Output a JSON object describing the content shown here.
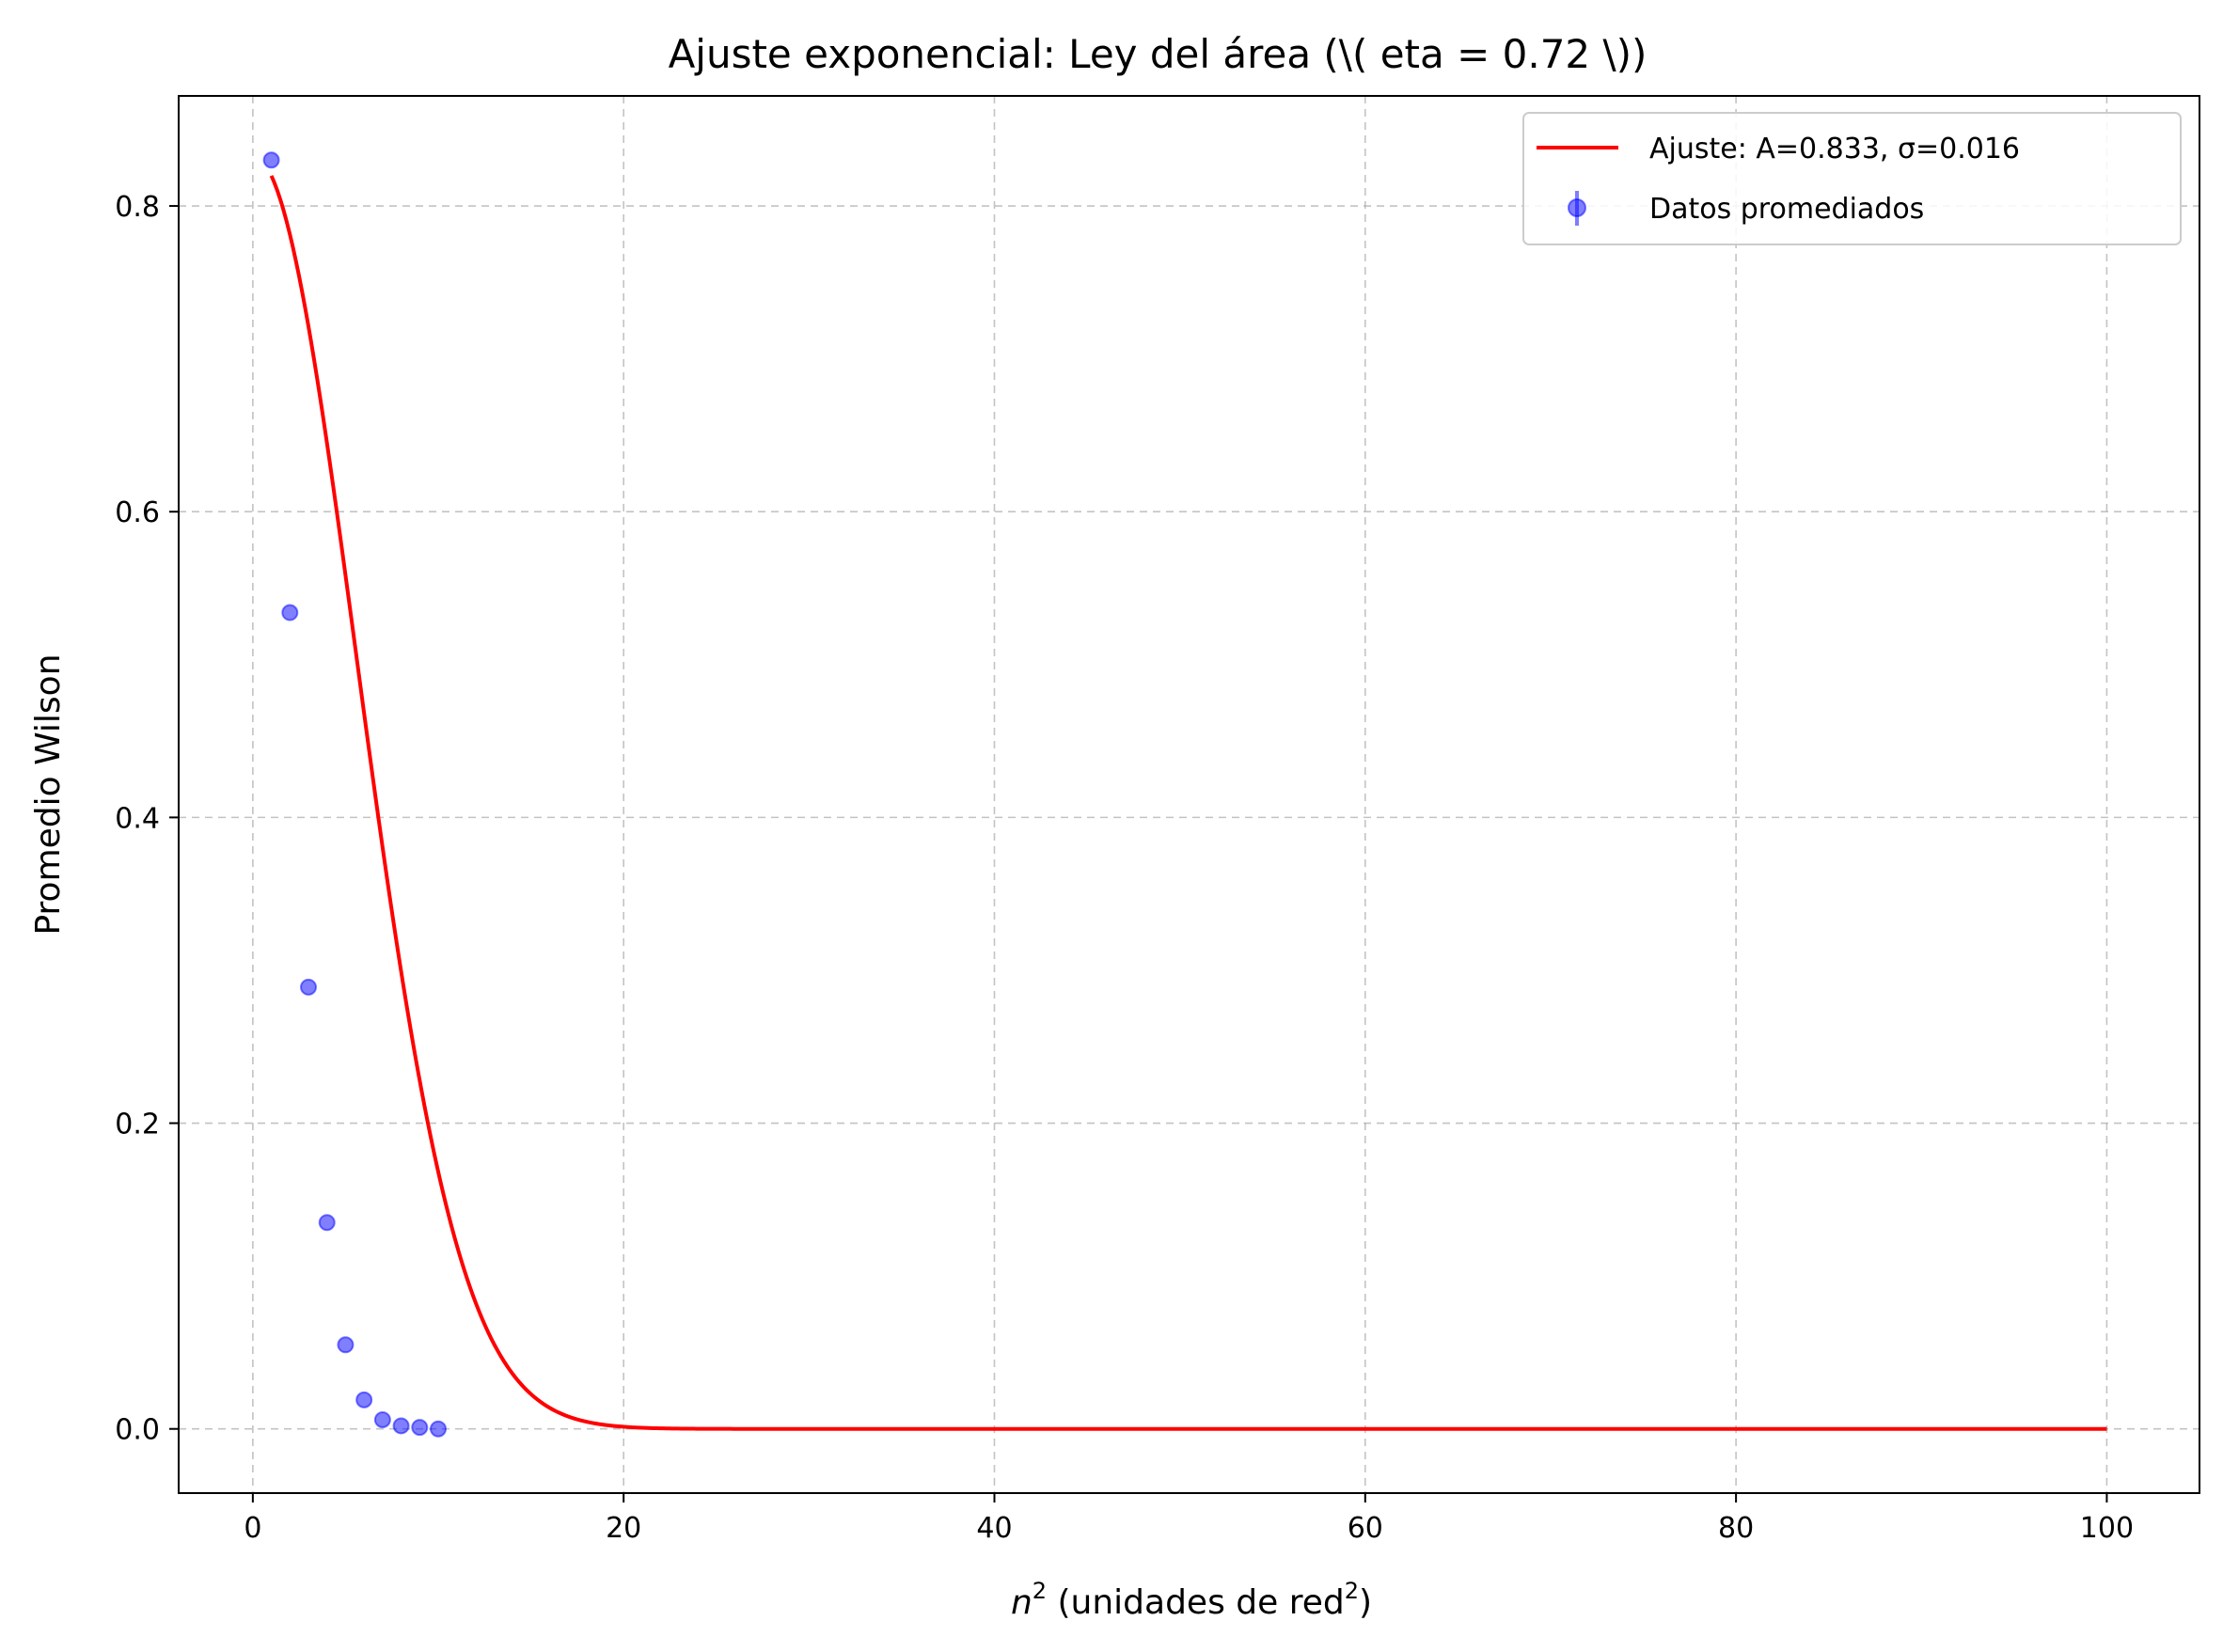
{
  "chart_data": {
    "type": "scatter",
    "title": "Ajuste exponencial: Ley del área (\\( \beta = 0.72 \\))",
    "xlabel": {
      "base": "n",
      "sup": "2",
      "rest": " (unidades de red",
      "rest_sup": "2",
      "close": ")"
    },
    "ylabel": "Promedio Wilson",
    "xlim": [
      -4,
      105
    ],
    "ylim": [
      -0.042,
      0.872
    ],
    "xticks": [
      0,
      20,
      40,
      60,
      80,
      100
    ],
    "xtick_labels": [
      "0",
      "20",
      "40",
      "60",
      "80",
      "100"
    ],
    "yticks": [
      0.0,
      0.2,
      0.4,
      0.6,
      0.8
    ],
    "ytick_labels": [
      "0.0",
      "0.2",
      "0.4",
      "0.6",
      "0.8"
    ],
    "grid": true,
    "legend_position": "top-right",
    "series": [
      {
        "name": "Ajuste: A=0.833, σ=0.016",
        "kind": "line",
        "color": "#ff0000",
        "model": {
          "A": 0.833,
          "sigma": 0.016,
          "x_start": 1,
          "x_end": 100
        }
      },
      {
        "name": "Datos promediados",
        "kind": "errorbar-points",
        "color": "#0000ff",
        "x": [
          1,
          2,
          3,
          4,
          5,
          6,
          7,
          8,
          9,
          10
        ],
        "y": [
          0.83,
          0.534,
          0.289,
          0.135,
          0.055,
          0.019,
          0.006,
          0.002,
          0.001,
          0.0
        ]
      }
    ]
  }
}
